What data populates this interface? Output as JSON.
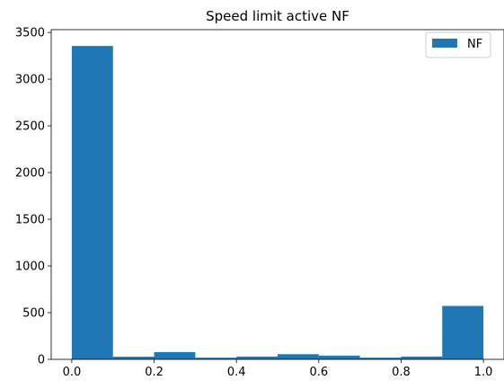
{
  "chart_data": {
    "type": "bar",
    "title": "Speed limit active NF",
    "xlabel": "",
    "ylabel": "",
    "xlim": [
      -0.05,
      1.05
    ],
    "ylim": [
      0,
      3530
    ],
    "x_ticks": [
      0.0,
      0.2,
      0.4,
      0.6,
      0.8,
      1.0
    ],
    "x_tick_labels": [
      "0.0",
      "0.2",
      "0.4",
      "0.6",
      "0.8",
      "1.0"
    ],
    "y_ticks": [
      0,
      500,
      1000,
      1500,
      2000,
      2500,
      3000,
      3500
    ],
    "y_tick_labels": [
      "0",
      "500",
      "1000",
      "1500",
      "2000",
      "2500",
      "3000",
      "3500"
    ],
    "bin_edges": [
      0.0,
      0.1,
      0.2,
      0.3,
      0.4,
      0.5,
      0.6,
      0.7,
      0.8,
      0.9,
      1.0
    ],
    "series": [
      {
        "name": "NF",
        "color": "#1f77b4",
        "values": [
          3355,
          28,
          78,
          18,
          30,
          55,
          40,
          18,
          30,
          572
        ]
      }
    ],
    "grid": false,
    "legend": {
      "position": "top-right",
      "entries": [
        "NF"
      ]
    }
  }
}
